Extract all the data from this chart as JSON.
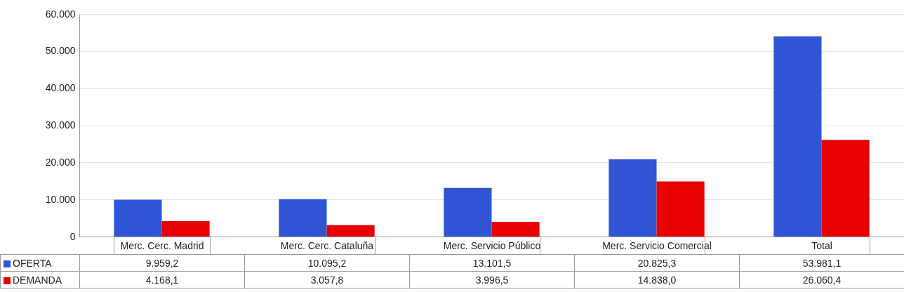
{
  "chart_data": {
    "type": "bar",
    "categories": [
      "Merc. Cerc. Madrid",
      "Merc. Cerc. Cataluña",
      "Merc. Servicio Público",
      "Merc. Servicio Comercial",
      "Total"
    ],
    "series": [
      {
        "name": "OFERTA",
        "color": "#2f55d4",
        "values": [
          9959.2,
          10095.2,
          13101.5,
          20825.3,
          53981.1
        ],
        "value_labels": [
          "9.959,2",
          "10.095,2",
          "13.101,5",
          "20.825,3",
          "53.981,1"
        ]
      },
      {
        "name": "DEMANDA",
        "color": "#e80000",
        "values": [
          4168.1,
          3057.8,
          3996.5,
          14838.0,
          26060.4
        ],
        "value_labels": [
          "4.168,1",
          "3.057,8",
          "3.996,5",
          "14.838,0",
          "26.060,4"
        ]
      }
    ],
    "ylim": [
      0,
      60000
    ],
    "yticks": [
      0,
      {
        "value": 10000,
        "label": "10.000"
      },
      {
        "value": 20000,
        "label": "20.000"
      },
      {
        "value": 30000,
        "label": "30.000"
      },
      {
        "value": 40000,
        "label": "40.000"
      },
      {
        "value": 50000,
        "label": "50.000"
      },
      {
        "value": 60000,
        "label": "60.000"
      }
    ],
    "grid": "y",
    "legend": "bottom left"
  }
}
